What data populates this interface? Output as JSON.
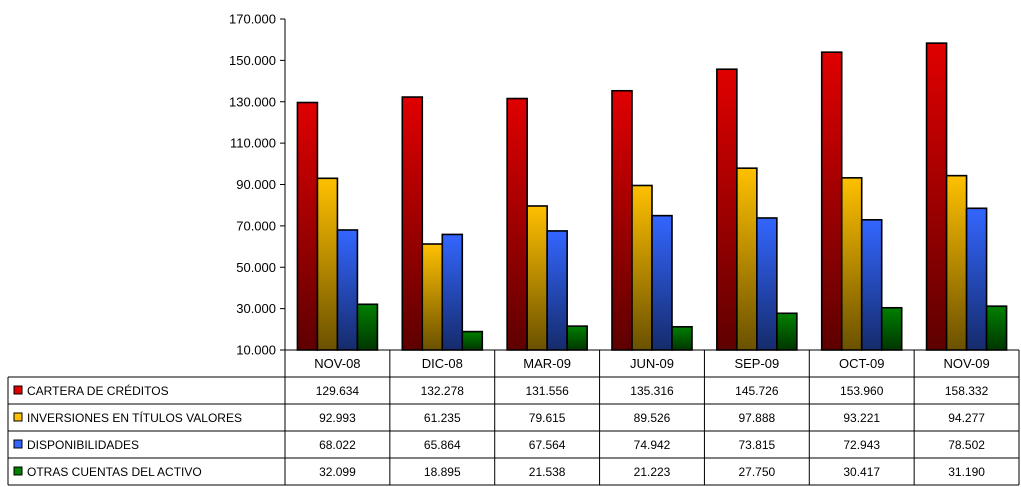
{
  "chart_data": {
    "type": "bar",
    "categories": [
      "NOV-08",
      "DIC-08",
      "MAR-09",
      "JUN-09",
      "SEP-09",
      "OCT-09",
      "NOV-09"
    ],
    "series": [
      {
        "name": "CARTERA DE CRÉDITOS",
        "color": "#e00000",
        "values": [
          "129.634",
          "132.278",
          "131.556",
          "135.316",
          "145.726",
          "153.960",
          "158.332"
        ]
      },
      {
        "name": "INVERSIONES EN TÍTULOS VALORES",
        "color": "#ffc000",
        "values": [
          "92.993",
          "61.235",
          "79.615",
          "89.526",
          "97.888",
          "93.221",
          "94.277"
        ]
      },
      {
        "name": "DISPONIBILIDADES",
        "color": "#3366ff",
        "values": [
          "68.022",
          "65.864",
          "67.564",
          "74.942",
          "73.815",
          "72.943",
          "78.502"
        ]
      },
      {
        "name": "OTRAS CUENTAS DEL ACTIVO",
        "color": "#008000",
        "values": [
          "32.099",
          "18.895",
          "21.538",
          "21.223",
          "27.750",
          "30.417",
          "31.190"
        ]
      }
    ],
    "yticks": [
      "10.000",
      "30.000",
      "50.000",
      "70.000",
      "90.000",
      "110.000",
      "130.000",
      "150.000",
      "170.000"
    ],
    "ylim": [
      10000,
      170000
    ],
    "grid": false,
    "legend": "data table, left",
    "title": "",
    "xlabel": "",
    "ylabel": ""
  }
}
